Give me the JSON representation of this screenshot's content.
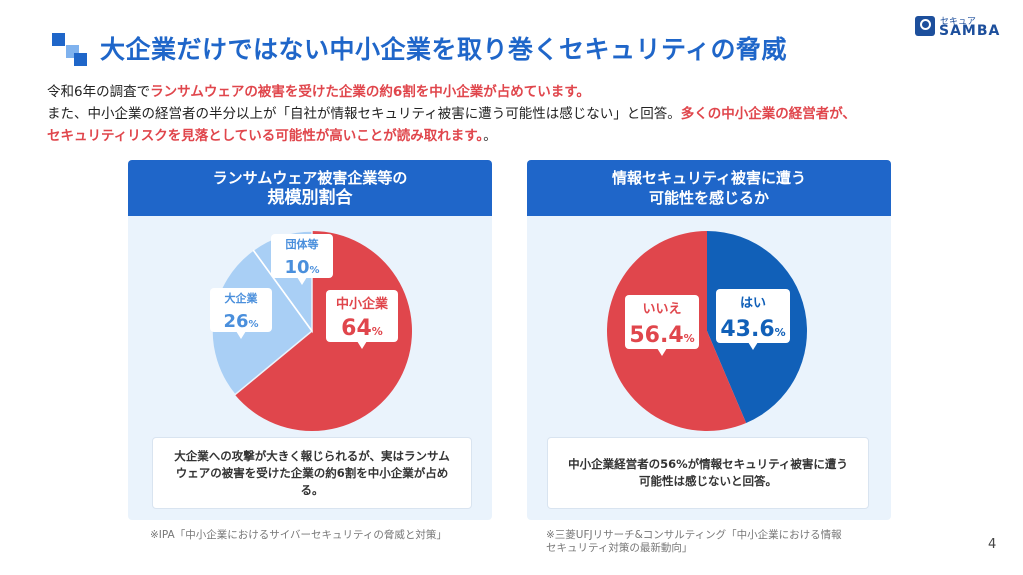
{
  "title": "大企業だけではない中小企業を取り巻くセキュリティの脅威",
  "logo": {
    "small": "セキュア",
    "main": "SAMBA"
  },
  "intro": {
    "line1_a": "令和6年の調査で",
    "line1_b": "ランサムウェアの被害を受けた企業の約6割を中小企業が占めています。",
    "line2_a": "また、中小企業の経営者の半分以上が「自社が情報セキュリティ被害に遭う可能性は感じない」と回答。",
    "line2_b": "多くの中小企業の経営者が、",
    "line3": "セキュリティリスクを見落としている可能性が高いことが読み取れます。",
    "line3_end": "。"
  },
  "left_panel": {
    "heading_line1": "ランサムウェア被害企業等の",
    "heading_line2": "規模別割合",
    "note": "大企業への攻撃が大きく報じられるが、実はランサムウェアの被害を受けた企業の約6割を中小企業が占める。",
    "note_l1": "大企業への攻撃が大きく報じられるが、実はランサム",
    "note_l2": "ウェアの被害を受けた企業の約6割を中小企業が占め",
    "note_l3": "る。",
    "source": "※IPA「中小企業におけるサイバーセキュリティの脅威と対策」"
  },
  "right_panel": {
    "heading_line1": "情報セキュリティ被害に遭う",
    "heading_line2": "可能性を感じるか",
    "note_l1": "中小企業経営者の56%が情報セキュリティ被害に遭う",
    "note_l2": "可能性は感じないと回答。",
    "source_l1": "※三菱UFJリサーチ&コンサルティング「中小企業における情報",
    "source_l2": "セキュリティ対策の最新動向」"
  },
  "page_number": "4",
  "colors": {
    "blue": "#1f66c9",
    "dark_blue": "#1160b8",
    "red": "#e0464c",
    "light_blue": "#a9cff5"
  },
  "chart_data": [
    {
      "type": "pie",
      "title": "ランサムウェア被害企業等の規模別割合",
      "unit": "%",
      "slices": [
        {
          "label": "中小企業",
          "value": 64,
          "color": "#e0464c"
        },
        {
          "label": "大企業",
          "value": 26,
          "color": "#a9cff5"
        },
        {
          "label": "団体等",
          "value": 10,
          "color": "#a9cff5"
        }
      ]
    },
    {
      "type": "pie",
      "title": "情報セキュリティ被害に遭う可能性を感じるか",
      "unit": "%",
      "slices": [
        {
          "label": "はい",
          "value": 43.6,
          "color": "#1160b8"
        },
        {
          "label": "いいえ",
          "value": 56.4,
          "color": "#e0464c"
        }
      ]
    }
  ]
}
